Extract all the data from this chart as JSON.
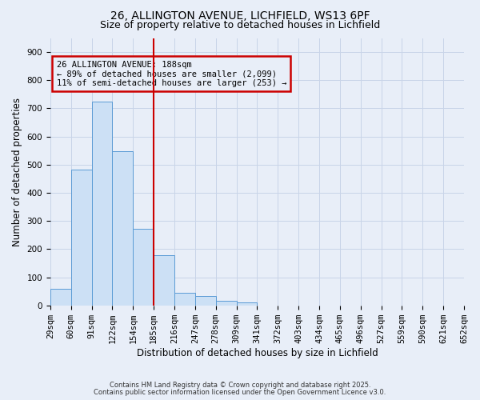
{
  "title": "26, ALLINGTON AVENUE, LICHFIELD, WS13 6PF",
  "subtitle": "Size of property relative to detached houses in Lichfield",
  "bar_values": [
    60,
    483,
    725,
    549,
    272,
    178,
    46,
    34,
    15,
    10,
    0,
    0,
    0,
    0,
    0,
    0,
    0,
    0,
    0,
    0
  ],
  "bin_labels": [
    "29sqm",
    "60sqm",
    "91sqm",
    "122sqm",
    "154sqm",
    "185sqm",
    "216sqm",
    "247sqm",
    "278sqm",
    "309sqm",
    "341sqm",
    "372sqm",
    "403sqm",
    "434sqm",
    "465sqm",
    "496sqm",
    "527sqm",
    "559sqm",
    "590sqm",
    "621sqm",
    "652sqm"
  ],
  "bar_color": "#cce0f5",
  "bar_edge_color": "#5b9bd5",
  "vline_x": 5,
  "vline_color": "#cc0000",
  "annotation_box_text": "26 ALLINGTON AVENUE: 188sqm\n← 89% of detached houses are smaller (2,099)\n11% of semi-detached houses are larger (253) →",
  "annotation_box_color": "#cc0000",
  "xlabel": "Distribution of detached houses by size in Lichfield",
  "ylabel": "Number of detached properties",
  "ylim": [
    0,
    950
  ],
  "yticks": [
    0,
    100,
    200,
    300,
    400,
    500,
    600,
    700,
    800,
    900
  ],
  "grid_color": "#c8d4e8",
  "bg_color": "#e8eef8",
  "footer1": "Contains HM Land Registry data © Crown copyright and database right 2025.",
  "footer2": "Contains public sector information licensed under the Open Government Licence v3.0.",
  "title_fontsize": 10,
  "subtitle_fontsize": 9,
  "axis_label_fontsize": 8.5,
  "tick_fontsize": 7.5,
  "footer_fontsize": 6
}
